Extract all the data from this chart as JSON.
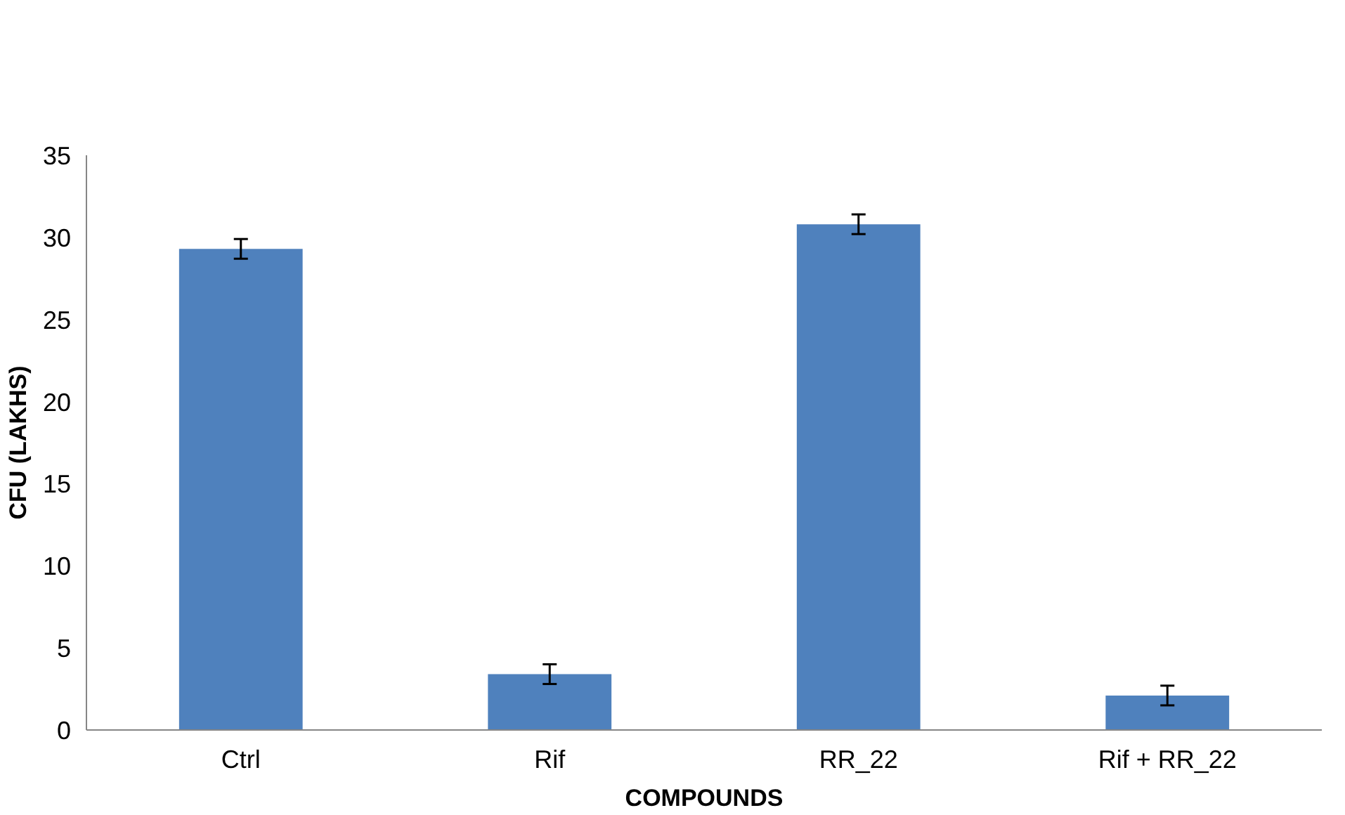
{
  "chart_data": {
    "type": "bar",
    "xlabel": "COMPOUNDS",
    "ylabel": "CFU (LAKHS)",
    "categories": [
      "Ctrl",
      "Rif",
      "RR_22",
      "Rif + RR_22"
    ],
    "values": [
      29.3,
      3.4,
      30.8,
      2.1
    ],
    "errors": [
      0.6,
      0.6,
      0.6,
      0.6
    ],
    "color": "#4f81bd",
    "ylim": [
      0,
      35
    ],
    "yticks": [
      0,
      5,
      10,
      15,
      20,
      25,
      30,
      35
    ],
    "grid": false
  }
}
